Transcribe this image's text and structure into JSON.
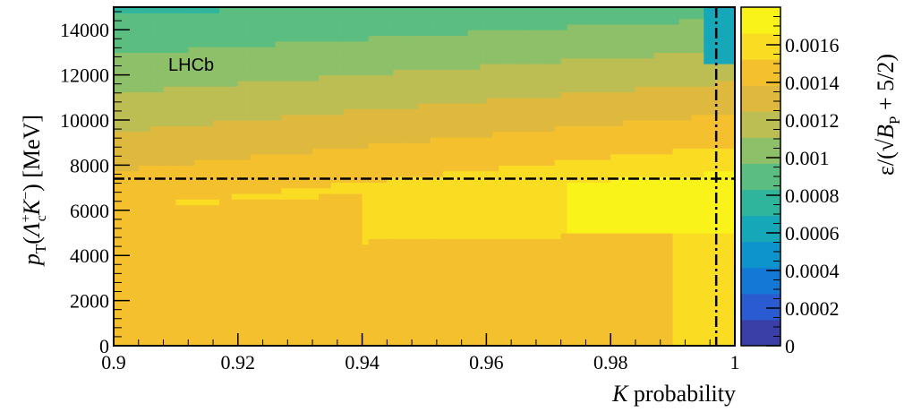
{
  "chart_data": {
    "type": "heatmap",
    "annotation": "LHCb",
    "x_axis": {
      "title_italic": "K",
      "title_rest": " probability",
      "range": [
        0.9,
        1.0
      ],
      "ticks": [
        0.9,
        0.92,
        0.94,
        0.96,
        0.98,
        1.0
      ],
      "tick_labels": [
        "0.9",
        "0.92",
        "0.94",
        "0.96",
        "0.98",
        "1"
      ]
    },
    "y_axis": {
      "title_p": "p",
      "title_sub": "T",
      "title_paren": "(",
      "title_lambda": "Λ",
      "title_lambda_sup": "+",
      "title_lambda_sub": "c",
      "title_kaon": "K",
      "title_kaon_sup": "−",
      "title_close": ")",
      "title_unit": " [MeV]",
      "range": [
        0,
        15000
      ],
      "ticks": [
        0,
        2000,
        4000,
        6000,
        8000,
        10000,
        12000,
        14000
      ],
      "tick_labels": [
        "0",
        "2000",
        "4000",
        "6000",
        "8000",
        "10000",
        "12000",
        "14000"
      ]
    },
    "z_axis": {
      "title_a": "ε/(",
      "title_b": "B",
      "title_sub": "P",
      "title_c": " + 5/2)",
      "range": [
        0,
        0.0018
      ],
      "ticks": [
        0,
        0.0002,
        0.0004,
        0.0006,
        0.0008,
        0.001,
        0.0012,
        0.0014,
        0.0016
      ],
      "tick_labels": [
        "0",
        "0.0002",
        "0.0004",
        "0.0006",
        "0.0008",
        "0.001",
        "0.0012",
        "0.0014",
        "0.0016"
      ],
      "palette": [
        "#3a3fa8",
        "#2b5bd0",
        "#1479d6",
        "#0e94cc",
        "#16a7b9",
        "#2fb59c",
        "#5bbd80",
        "#8dc068",
        "#bcbd52",
        "#dfb93e",
        "#f5c02e",
        "#fadc22",
        "#f9f31a"
      ]
    },
    "optimal_cut": {
      "x": 0.997,
      "y": 7400
    },
    "heatmap_summary": {
      "description_values": "efficiency figure of merit; highest (~0.0018) near K probability 0.99-1.0 and pT ~6500-7500 MeV; lowest (~0.0008) at high pT above 13000 MeV",
      "value_at_low_pt_low_x": 0.0014,
      "value_at_low_pt_high_x": 0.0016,
      "value_max": 0.00178,
      "value_at_top": 0.0008
    }
  }
}
